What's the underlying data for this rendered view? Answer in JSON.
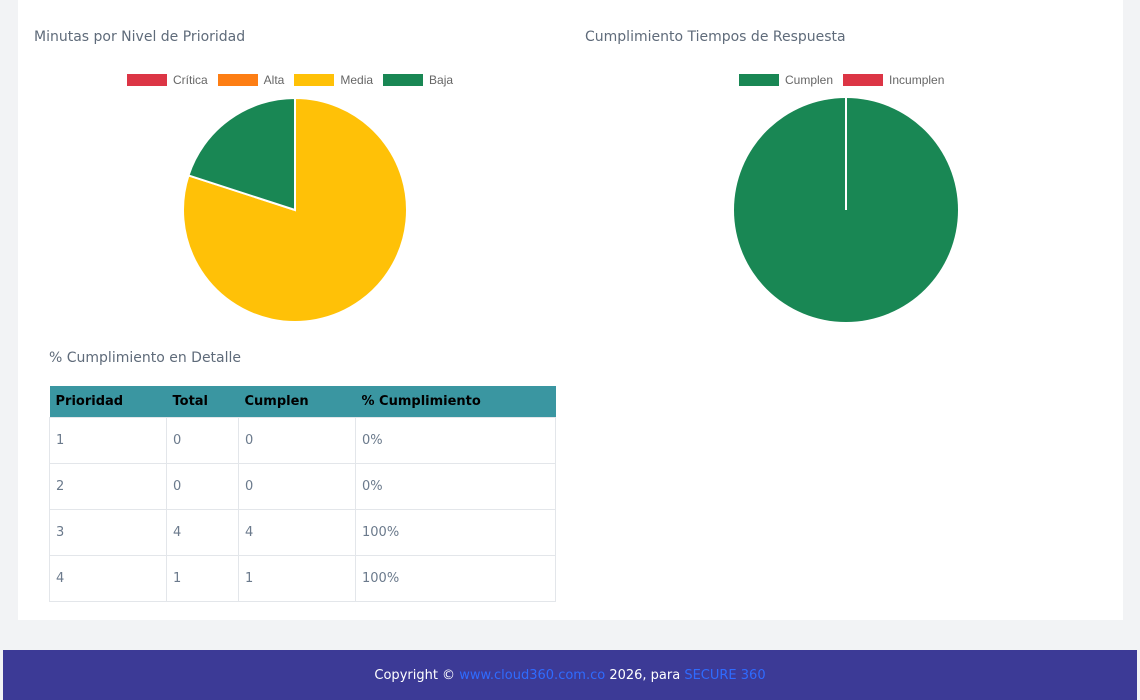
{
  "priority_chart": {
    "title": "Minutas por Nivel de Prioridad",
    "chart_data": {
      "type": "pie",
      "title": "Minutas por Nivel de Prioridad",
      "legend_position": "top",
      "categories": [
        "Crítica",
        "Alta",
        "Media",
        "Baja"
      ],
      "values": [
        0,
        0,
        4,
        1
      ],
      "colors": [
        "#dc3545",
        "#fd7e14",
        "#ffc107",
        "#198754"
      ]
    }
  },
  "compliance_chart": {
    "title": "Cumplimiento Tiempos de Respuesta",
    "chart_data": {
      "type": "pie",
      "title": "Cumplimiento Tiempos de Respuesta",
      "legend_position": "top",
      "categories": [
        "Cumplen",
        "Incumplen"
      ],
      "values": [
        5,
        0
      ],
      "colors": [
        "#198754",
        "#dc3545"
      ]
    }
  },
  "detail": {
    "title": "% Cumplimiento en Detalle",
    "headers": [
      "Prioridad",
      "Total",
      "Cumplen",
      "% Cumplimiento"
    ],
    "rows": [
      [
        "1",
        "0",
        "0",
        "0%"
      ],
      [
        "2",
        "0",
        "0",
        "0%"
      ],
      [
        "3",
        "4",
        "4",
        "100%"
      ],
      [
        "4",
        "1",
        "1",
        "100%"
      ]
    ]
  },
  "footer": {
    "prefix": "Copyright © ",
    "link_text": "www.cloud360.com.co",
    "middle": " 2026, para ",
    "brand": "SECURE 360"
  }
}
